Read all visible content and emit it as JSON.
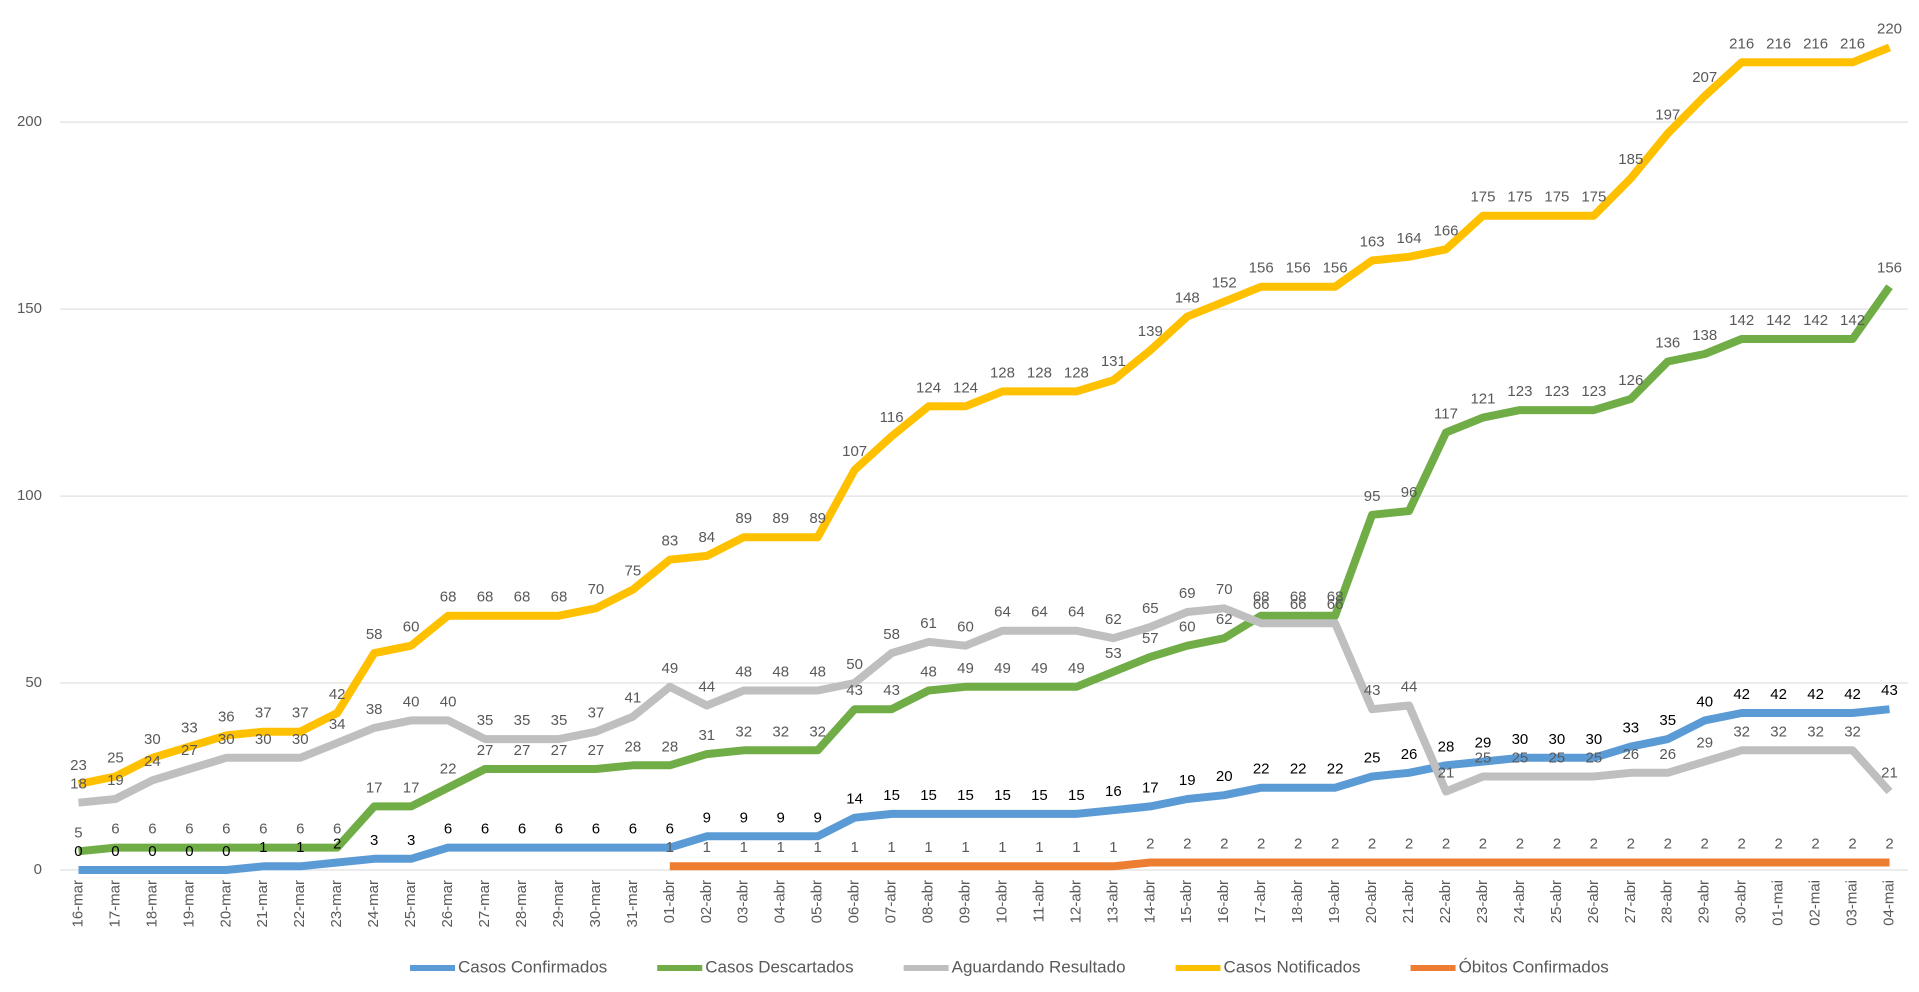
{
  "chart_data": {
    "type": "line",
    "categories": [
      "16-mar",
      "17-mar",
      "18-mar",
      "19-mar",
      "20-mar",
      "21-mar",
      "22-mar",
      "23-mar",
      "24-mar",
      "25-mar",
      "26-mar",
      "27-mar",
      "28-mar",
      "29-mar",
      "30-mar",
      "31-mar",
      "01-abr",
      "02-abr",
      "03-abr",
      "04-abr",
      "05-abr",
      "06-abr",
      "07-abr",
      "08-abr",
      "09-abr",
      "10-abr",
      "11-abr",
      "12-abr",
      "13-abr",
      "14-abr",
      "15-abr",
      "16-abr",
      "17-abr",
      "18-abr",
      "19-abr",
      "20-abr",
      "21-abr",
      "22-abr",
      "23-abr",
      "24-abr",
      "25-abr",
      "26-abr",
      "27-abr",
      "28-abr",
      "29-abr",
      "30-abr",
      "01-mai",
      "02-mai",
      "03-mai",
      "04-mai"
    ],
    "series": [
      {
        "name": "Casos Confirmados",
        "color": "#5b9bd5",
        "values": [
          0,
          0,
          0,
          0,
          0,
          1,
          1,
          2,
          3,
          3,
          6,
          6,
          6,
          6,
          6,
          6,
          6,
          9,
          9,
          9,
          9,
          14,
          15,
          15,
          15,
          15,
          15,
          15,
          16,
          17,
          19,
          20,
          22,
          22,
          22,
          25,
          26,
          28,
          29,
          30,
          30,
          30,
          33,
          35,
          40,
          42,
          42,
          42,
          42,
          43
        ]
      },
      {
        "name": "Casos Descartados",
        "color": "#70ad47",
        "values": [
          5,
          6,
          6,
          6,
          6,
          6,
          6,
          6,
          17,
          17,
          22,
          27,
          27,
          27,
          27,
          28,
          28,
          31,
          32,
          32,
          32,
          43,
          43,
          48,
          49,
          49,
          49,
          49,
          53,
          57,
          60,
          62,
          68,
          68,
          68,
          95,
          96,
          117,
          121,
          123,
          123,
          123,
          126,
          136,
          138,
          142,
          142,
          142,
          142,
          156
        ]
      },
      {
        "name": "Aguardando Resultado",
        "color": "#bfbfbf",
        "values": [
          18,
          19,
          24,
          27,
          30,
          30,
          30,
          34,
          38,
          40,
          40,
          35,
          35,
          35,
          37,
          41,
          49,
          44,
          48,
          48,
          48,
          50,
          58,
          61,
          60,
          64,
          64,
          64,
          62,
          65,
          69,
          70,
          66,
          66,
          66,
          43,
          44,
          21,
          25,
          25,
          25,
          25,
          26,
          26,
          29,
          32,
          32,
          32,
          32,
          21
        ]
      },
      {
        "name": "Casos Notificados",
        "color": "#ffc000",
        "values": [
          23,
          25,
          30,
          33,
          36,
          37,
          37,
          42,
          58,
          60,
          68,
          68,
          68,
          68,
          70,
          75,
          83,
          84,
          89,
          89,
          89,
          107,
          116,
          124,
          124,
          128,
          128,
          128,
          131,
          139,
          148,
          152,
          156,
          156,
          156,
          163,
          164,
          166,
          175,
          175,
          175,
          175,
          185,
          197,
          207,
          216,
          216,
          216,
          216,
          220
        ]
      },
      {
        "name": "Óbitos Confirmados",
        "color": "#ed7d31",
        "values": [
          null,
          null,
          null,
          null,
          null,
          null,
          null,
          null,
          null,
          null,
          null,
          null,
          null,
          null,
          null,
          null,
          1,
          1,
          1,
          1,
          1,
          1,
          1,
          1,
          1,
          1,
          1,
          1,
          1,
          2,
          2,
          2,
          2,
          2,
          2,
          2,
          2,
          2,
          2,
          2,
          2,
          2,
          2,
          2,
          2,
          2,
          2,
          2,
          2,
          2
        ]
      }
    ],
    "ylim": [
      0,
      230
    ],
    "yticks": [
      0,
      50,
      100,
      150,
      200
    ],
    "grid": true,
    "legend": "bottom"
  }
}
